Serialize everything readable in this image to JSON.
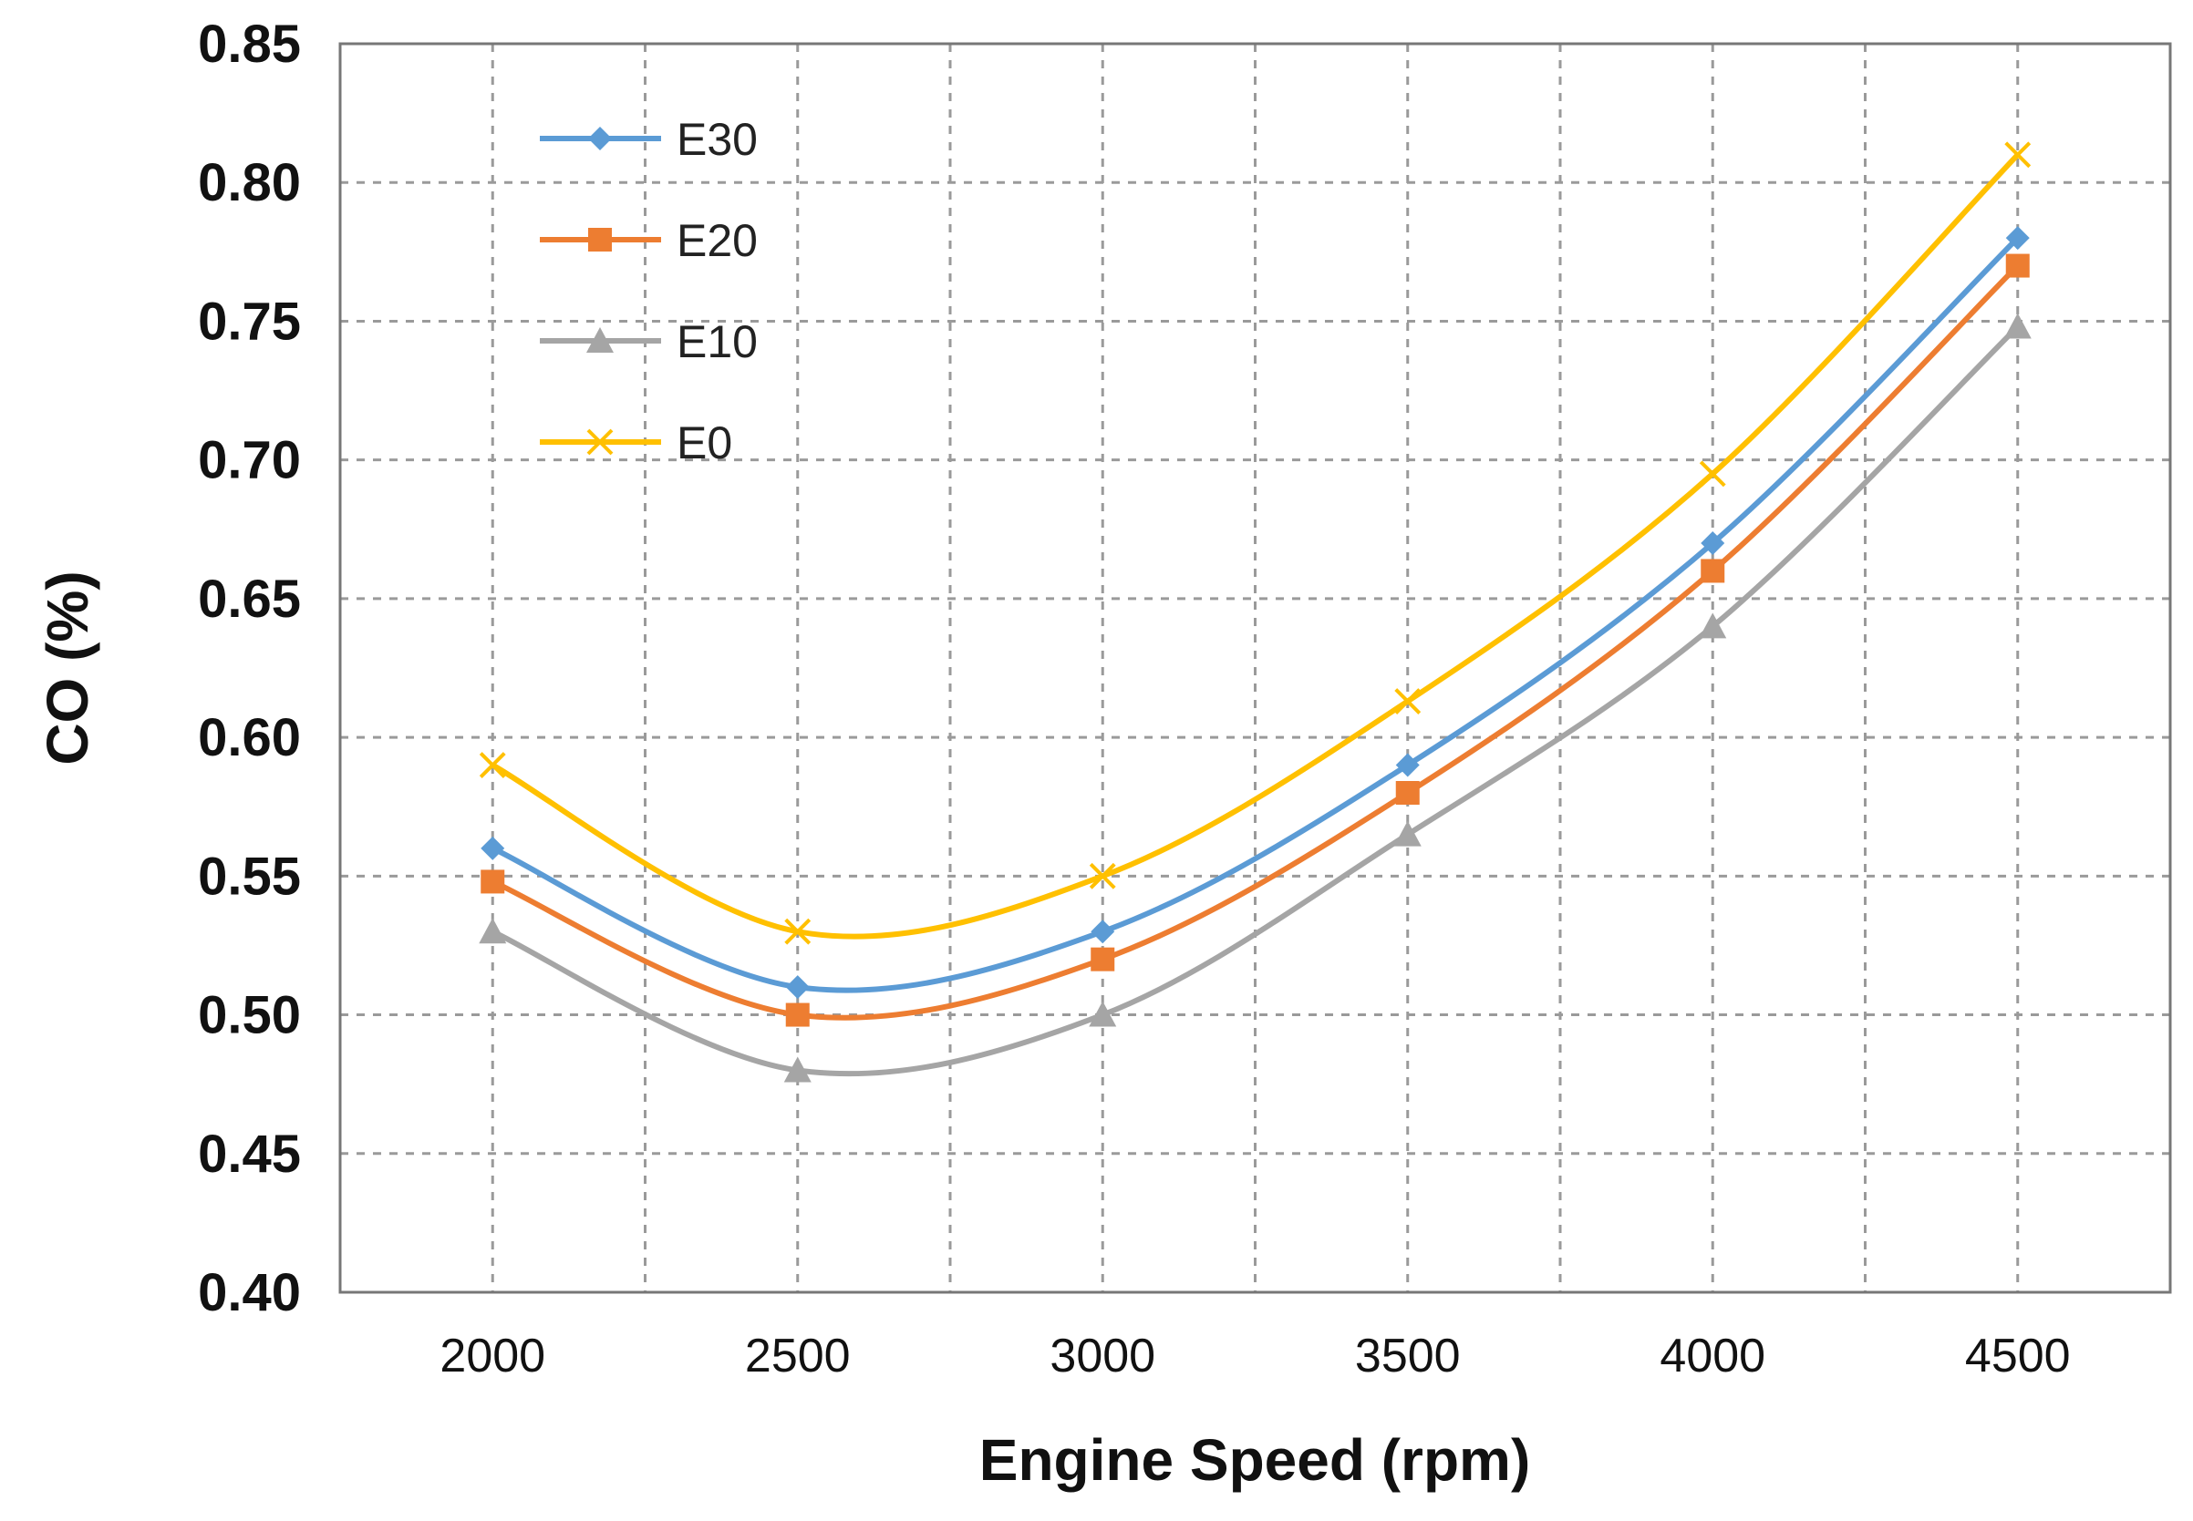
{
  "chart_data": {
    "type": "line",
    "title": "",
    "xlabel": "Engine Speed (rpm)",
    "ylabel": "CO (%)",
    "x": [
      2000,
      2500,
      3000,
      3500,
      4000,
      4500
    ],
    "x_tick_labels": [
      "2000",
      "2500",
      "3000",
      "3500",
      "4000",
      "4500"
    ],
    "y_tick_labels": [
      "0.40",
      "0.45",
      "0.50",
      "0.55",
      "0.60",
      "0.65",
      "0.70",
      "0.75",
      "0.80",
      "0.85"
    ],
    "y_ticks": [
      0.4,
      0.45,
      0.5,
      0.55,
      0.6,
      0.65,
      0.7,
      0.75,
      0.8,
      0.85
    ],
    "xlim": [
      1750,
      4750
    ],
    "ylim": [
      0.4,
      0.85
    ],
    "grid": true,
    "legend_position": "top-left",
    "series": [
      {
        "name": "E30",
        "color": "#5b9bd5",
        "marker": "diamond",
        "values": [
          0.56,
          0.51,
          0.53,
          0.59,
          0.67,
          0.78
        ]
      },
      {
        "name": "E20",
        "color": "#ed7d31",
        "marker": "square",
        "values": [
          0.548,
          0.5,
          0.52,
          0.58,
          0.66,
          0.77
        ]
      },
      {
        "name": "E10",
        "color": "#a5a5a5",
        "marker": "triangle",
        "values": [
          0.53,
          0.48,
          0.5,
          0.565,
          0.64,
          0.748
        ]
      },
      {
        "name": "E0",
        "color": "#ffc000",
        "marker": "x",
        "values": [
          0.59,
          0.53,
          0.55,
          0.613,
          0.695,
          0.81
        ]
      }
    ]
  }
}
